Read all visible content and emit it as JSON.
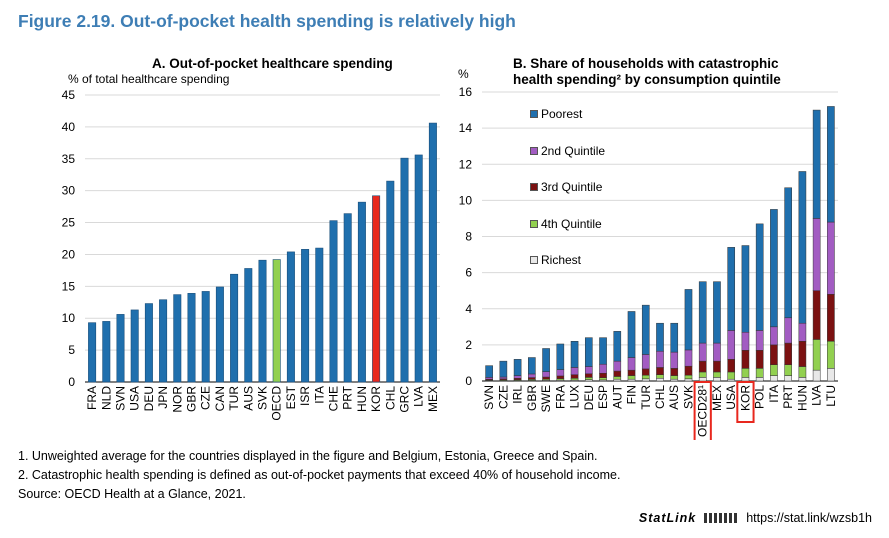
{
  "figure_title": "Figure 2.19. Out-of-pocket health spending is relatively high",
  "chart_data": [
    {
      "type": "bar",
      "title": "A. Out-of-pocket healthcare spending",
      "ylabel": "% of total healthcare spending",
      "ylim": [
        0,
        45
      ],
      "yticks": [
        0,
        5,
        10,
        15,
        20,
        25,
        30,
        35,
        40,
        45
      ],
      "grid": true,
      "categories": [
        "FRA",
        "NLD",
        "SVN",
        "USA",
        "DEU",
        "JPN",
        "NOR",
        "GBR",
        "CZE",
        "CAN",
        "TUR",
        "AUS",
        "SVK",
        "OECD",
        "EST",
        "ISR",
        "ITA",
        "CHE",
        "PRT",
        "HUN",
        "KOR",
        "CHL",
        "GRC",
        "LVA",
        "MEX"
      ],
      "values": [
        9.3,
        9.5,
        10.6,
        11.3,
        12.3,
        12.9,
        13.7,
        13.9,
        14.2,
        14.9,
        16.9,
        17.8,
        19.1,
        19.2,
        20.4,
        20.8,
        21.0,
        25.3,
        26.4,
        28.2,
        29.2,
        31.5,
        35.1,
        35.6,
        40.6
      ],
      "colors": {
        "default": "#1f6fad",
        "OECD": "#92d050",
        "KOR": "#e8281e"
      }
    },
    {
      "type": "stacked_bar",
      "title_line1": "B. Share of households with catastrophic",
      "title_line2": "health spending² by consumption quintile",
      "ylabel": "%",
      "ylim": [
        0,
        16
      ],
      "yticks": [
        0,
        2,
        4,
        6,
        8,
        10,
        12,
        14,
        16
      ],
      "grid": true,
      "legend_position": "left-inside",
      "categories": [
        "SVN",
        "CZE",
        "IRL",
        "GBR",
        "SWE",
        "FRA",
        "LUX",
        "DEU",
        "ESP",
        "AUT",
        "FIN",
        "TUR",
        "CHL",
        "AUS",
        "SVK",
        "OECD28¹",
        "MEX",
        "USA",
        "KOR",
        "POL",
        "ITA",
        "PRT",
        "HUN",
        "LVA",
        "LTU"
      ],
      "highlighted": [
        "OECD28¹",
        "KOR"
      ],
      "series": [
        {
          "name": "Richest",
          "color": "#e8e8e8",
          "values": [
            0.02,
            0.02,
            0.03,
            0.03,
            0.04,
            0.05,
            0.05,
            0.08,
            0.06,
            0.1,
            0.1,
            0.12,
            0.15,
            0.1,
            0.12,
            0.2,
            0.2,
            0.1,
            0.2,
            0.2,
            0.3,
            0.3,
            0.2,
            0.6,
            0.7
          ]
        },
        {
          "name": "4th Quintile",
          "color": "#92d050",
          "values": [
            0.03,
            0.04,
            0.04,
            0.06,
            0.06,
            0.08,
            0.1,
            0.12,
            0.12,
            0.15,
            0.2,
            0.2,
            0.2,
            0.2,
            0.2,
            0.3,
            0.3,
            0.4,
            0.5,
            0.5,
            0.6,
            0.6,
            0.6,
            1.7,
            1.5
          ]
        },
        {
          "name": "3rd Quintile",
          "color": "#7b1111",
          "values": [
            0.05,
            0.06,
            0.08,
            0.1,
            0.12,
            0.15,
            0.2,
            0.2,
            0.25,
            0.3,
            0.3,
            0.35,
            0.4,
            0.4,
            0.5,
            0.6,
            0.6,
            0.7,
            1.0,
            1.0,
            1.1,
            1.2,
            1.4,
            2.7,
            2.6
          ]
        },
        {
          "name": "2nd Quintile",
          "color": "#a25cc2",
          "values": [
            0.1,
            0.1,
            0.15,
            0.2,
            0.3,
            0.35,
            0.4,
            0.4,
            0.5,
            0.55,
            0.7,
            0.8,
            0.9,
            0.9,
            0.9,
            1.0,
            1.0,
            1.6,
            1.0,
            1.1,
            1.0,
            1.4,
            1.0,
            4.0,
            4.0
          ]
        },
        {
          "name": "Poorest",
          "color": "#1f6fad",
          "values": [
            0.65,
            0.88,
            0.9,
            0.91,
            1.28,
            1.42,
            1.45,
            1.6,
            1.47,
            1.65,
            2.55,
            2.73,
            1.55,
            1.6,
            3.35,
            3.4,
            3.4,
            4.6,
            4.8,
            5.9,
            6.5,
            7.2,
            8.4,
            6.0,
            6.4
          ]
        }
      ]
    }
  ],
  "notes": [
    "1. Unweighted average for the countries displayed in the figure and Belgium, Estonia, Greece and Spain.",
    "2. Catastrophic health spending is defined as out-of-pocket payments that exceed 40% of household income.",
    "Source: OECD Health at a Glance, 2021."
  ],
  "statlink": {
    "label": "StatLink",
    "url": "https://stat.link/wzsb1h"
  }
}
